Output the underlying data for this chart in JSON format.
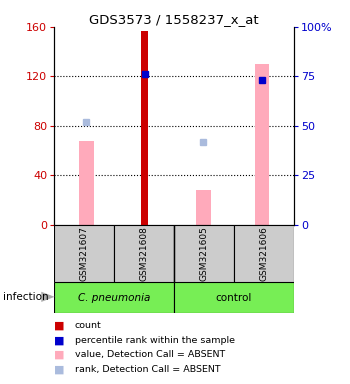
{
  "title": "GDS3573 / 1558237_x_at",
  "samples": [
    "GSM321607",
    "GSM321608",
    "GSM321605",
    "GSM321606"
  ],
  "count_values": [
    0,
    157,
    0,
    0
  ],
  "pink_bar_values": [
    68,
    0,
    28,
    130
  ],
  "blue_dot_values": [
    null,
    76,
    null,
    73
  ],
  "lightblue_dot_values": [
    52,
    null,
    42,
    null
  ],
  "ylim_left": [
    0,
    160
  ],
  "ylim_right": [
    0,
    100
  ],
  "left_ticks": [
    0,
    40,
    80,
    120,
    160
  ],
  "right_ticks": [
    0,
    25,
    50,
    75,
    100
  ],
  "right_tick_labels": [
    "0",
    "25",
    "50",
    "75",
    "100%"
  ],
  "color_red": "#cc0000",
  "color_pink": "#ffaabb",
  "color_blue": "#0000cc",
  "color_lightblue": "#aabbdd",
  "color_green": "#77ee55",
  "group_label": "infection",
  "red_bar_width": 0.12,
  "pink_bar_width": 0.25
}
